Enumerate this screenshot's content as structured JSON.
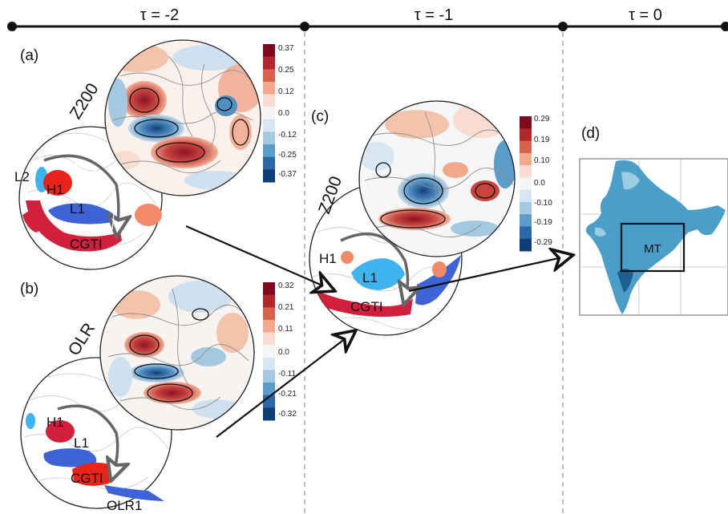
{
  "timeline": {
    "labels": [
      "τ = -2",
      "τ = -1",
      "τ = 0"
    ]
  },
  "panels": {
    "a": {
      "tag": "(a)",
      "variable": "Z200",
      "features": [
        "L2",
        "H1",
        "L1",
        "CGTI"
      ],
      "colorbar": [
        "0.37",
        "0.25",
        "0.12",
        "0.0",
        "-0.12",
        "-0.25",
        "-0.37"
      ]
    },
    "b": {
      "tag": "(b)",
      "variable": "OLR",
      "features": [
        "H1",
        "L1",
        "CGTI",
        "OLR1"
      ],
      "colorbar": [
        "0.32",
        "0.21",
        "0.11",
        "0.0",
        "-0.11",
        "-0.21",
        "-0.32"
      ]
    },
    "c": {
      "tag": "(c)",
      "variable": "Z200",
      "features": [
        "H1",
        "L1",
        "CGTI"
      ],
      "colorbar": [
        "0.29",
        "0.19",
        "0.10",
        "0.0",
        "-0.10",
        "-0.19",
        "-0.29"
      ]
    },
    "d": {
      "tag": "(d)",
      "box_label": "MT"
    }
  },
  "colors": {
    "colorbar": [
      "#7f0a1e",
      "#b3262e",
      "#d9604b",
      "#f2a88a",
      "#f9ddd0",
      "#f5f5f5",
      "#d6e6f2",
      "#a3c8e0",
      "#5b9cc9",
      "#2c67a8",
      "#0f3d78"
    ],
    "high_red": "#d21f3c",
    "high_orange": "#f08a67",
    "low_blue": "#3e63d6",
    "low_light": "#3fb3ee",
    "india_fill": "#4a9ec8",
    "divider": "#a8a8a8"
  }
}
